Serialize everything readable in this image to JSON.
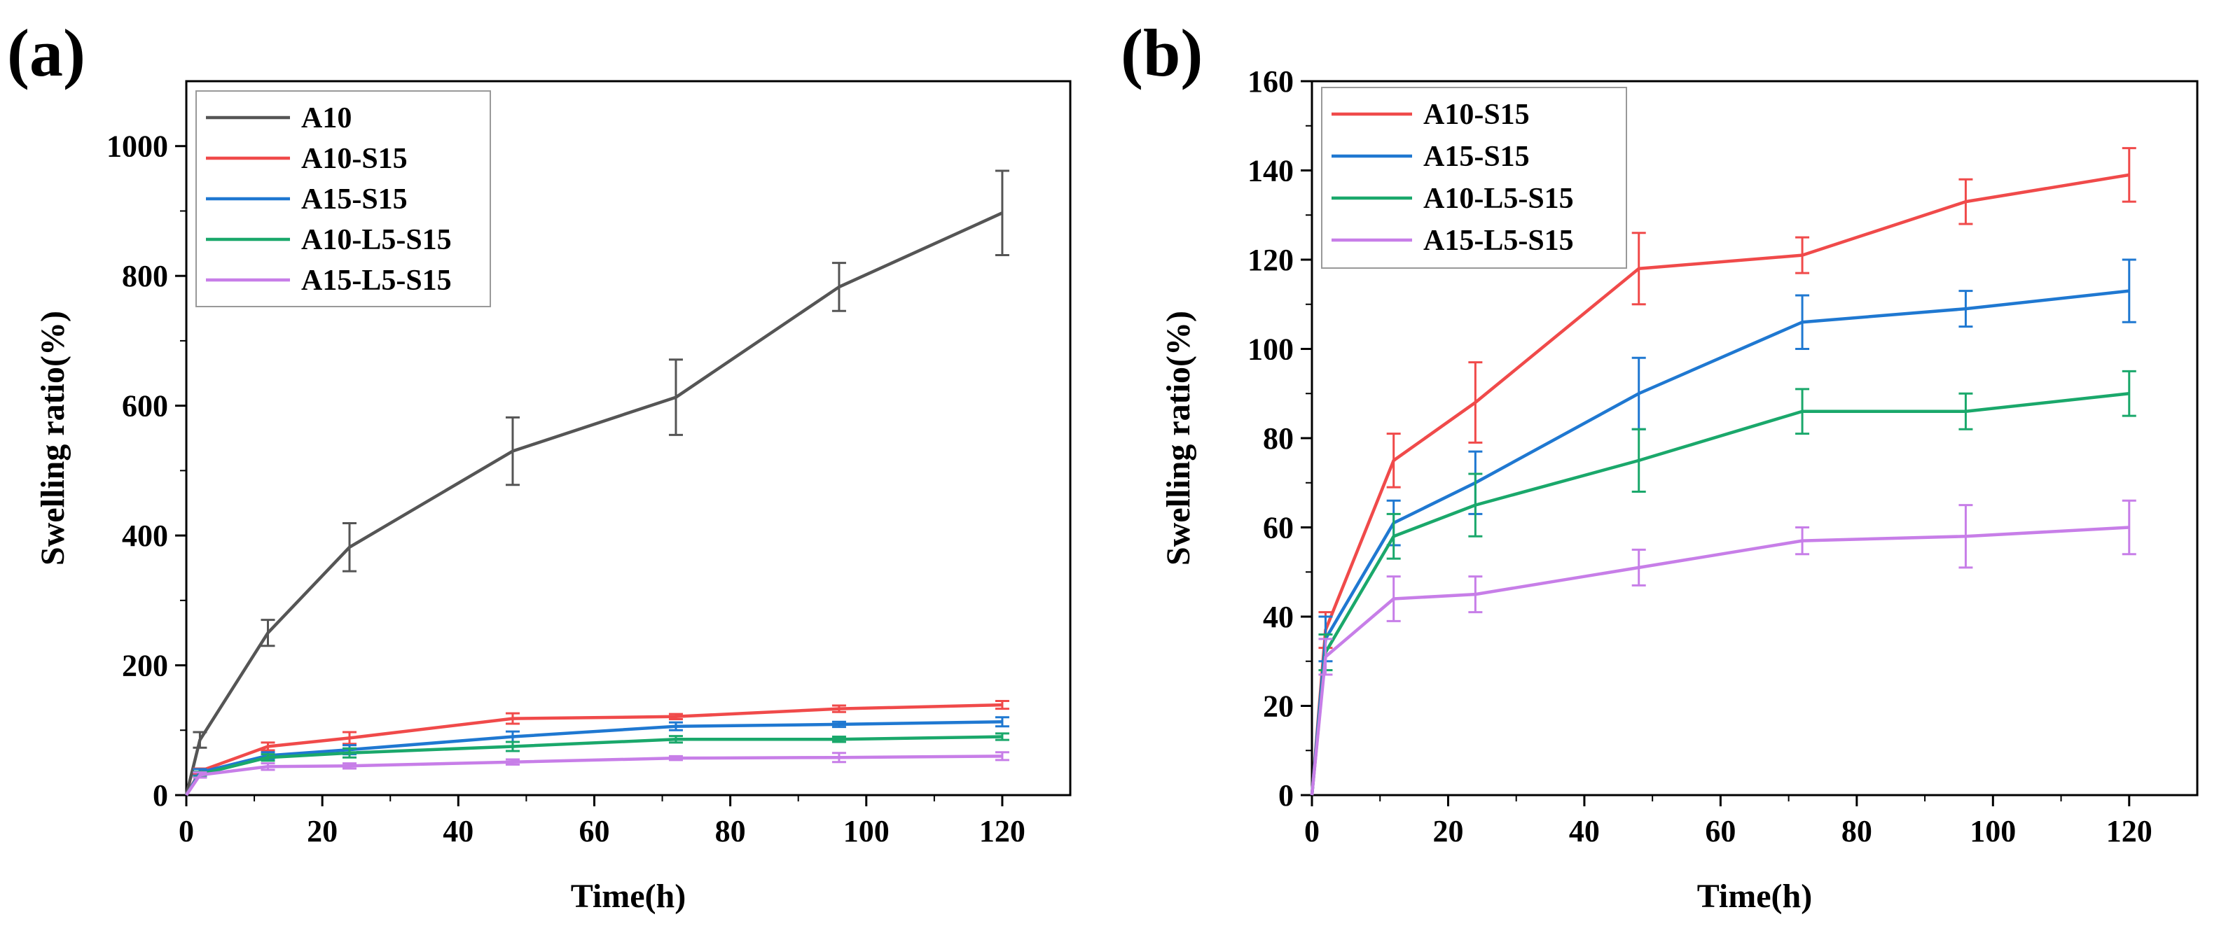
{
  "chart_data": [
    {
      "panel_label": "(a)",
      "type": "line",
      "xlabel": "Time(h)",
      "ylabel": "Swelling ratio(%)",
      "xlim": [
        0,
        130
      ],
      "ylim": [
        0,
        1100
      ],
      "xticks": [
        0,
        20,
        40,
        60,
        80,
        100,
        120
      ],
      "yticks": [
        0,
        200,
        400,
        600,
        800,
        1000
      ],
      "legend_position": "top-left",
      "x": [
        0,
        2,
        12,
        24,
        48,
        72,
        96,
        120
      ],
      "series": [
        {
          "name": "A10",
          "color": "#555555",
          "values": [
            0,
            85,
            250,
            382,
            530,
            613,
            783,
            897
          ],
          "errors": [
            0,
            12,
            20,
            37,
            52,
            58,
            37,
            65
          ]
        },
        {
          "name": "A10-S15",
          "color": "#f04a4a",
          "values": [
            0,
            37,
            75,
            88,
            118,
            121,
            133,
            139
          ],
          "errors": [
            0,
            4,
            6,
            9,
            8,
            4,
            5,
            6
          ]
        },
        {
          "name": "A15-S15",
          "color": "#1f78d1",
          "values": [
            0,
            35,
            61,
            70,
            90,
            106,
            109,
            113
          ],
          "errors": [
            0,
            5,
            5,
            7,
            8,
            6,
            4,
            7
          ]
        },
        {
          "name": "A10-L5-S15",
          "color": "#1aa86b",
          "values": [
            0,
            32,
            58,
            65,
            75,
            86,
            86,
            90
          ],
          "errors": [
            0,
            4,
            5,
            7,
            7,
            5,
            4,
            5
          ]
        },
        {
          "name": "A15-L5-S15",
          "color": "#c77ee8",
          "values": [
            0,
            31,
            44,
            45,
            51,
            57,
            58,
            60
          ],
          "errors": [
            0,
            4,
            5,
            4,
            4,
            3,
            7,
            6
          ]
        }
      ]
    },
    {
      "panel_label": "(b)",
      "type": "line",
      "xlabel": "Time(h)",
      "ylabel": "Swelling ratio(%)",
      "xlim": [
        0,
        130
      ],
      "ylim": [
        0,
        160
      ],
      "xticks": [
        0,
        20,
        40,
        60,
        80,
        100,
        120
      ],
      "yticks": [
        0,
        20,
        40,
        60,
        80,
        100,
        120,
        140,
        160
      ],
      "legend_position": "top-left",
      "x": [
        0,
        2,
        12,
        24,
        48,
        72,
        96,
        120
      ],
      "series": [
        {
          "name": "A10-S15",
          "color": "#f04a4a",
          "values": [
            0,
            37,
            75,
            88,
            118,
            121,
            133,
            139
          ],
          "errors": [
            0,
            4,
            6,
            9,
            8,
            4,
            5,
            6
          ]
        },
        {
          "name": "A15-S15",
          "color": "#1f78d1",
          "values": [
            0,
            35,
            61,
            70,
            90,
            106,
            109,
            113
          ],
          "errors": [
            0,
            5,
            5,
            7,
            8,
            6,
            4,
            7
          ]
        },
        {
          "name": "A10-L5-S15",
          "color": "#1aa86b",
          "values": [
            0,
            32,
            58,
            65,
            75,
            86,
            86,
            90
          ],
          "errors": [
            0,
            4,
            5,
            7,
            7,
            5,
            4,
            5
          ]
        },
        {
          "name": "A15-L5-S15",
          "color": "#c77ee8",
          "values": [
            0,
            31,
            44,
            45,
            51,
            57,
            58,
            60
          ],
          "errors": [
            0,
            4,
            5,
            4,
            4,
            3,
            7,
            6
          ]
        }
      ]
    }
  ]
}
